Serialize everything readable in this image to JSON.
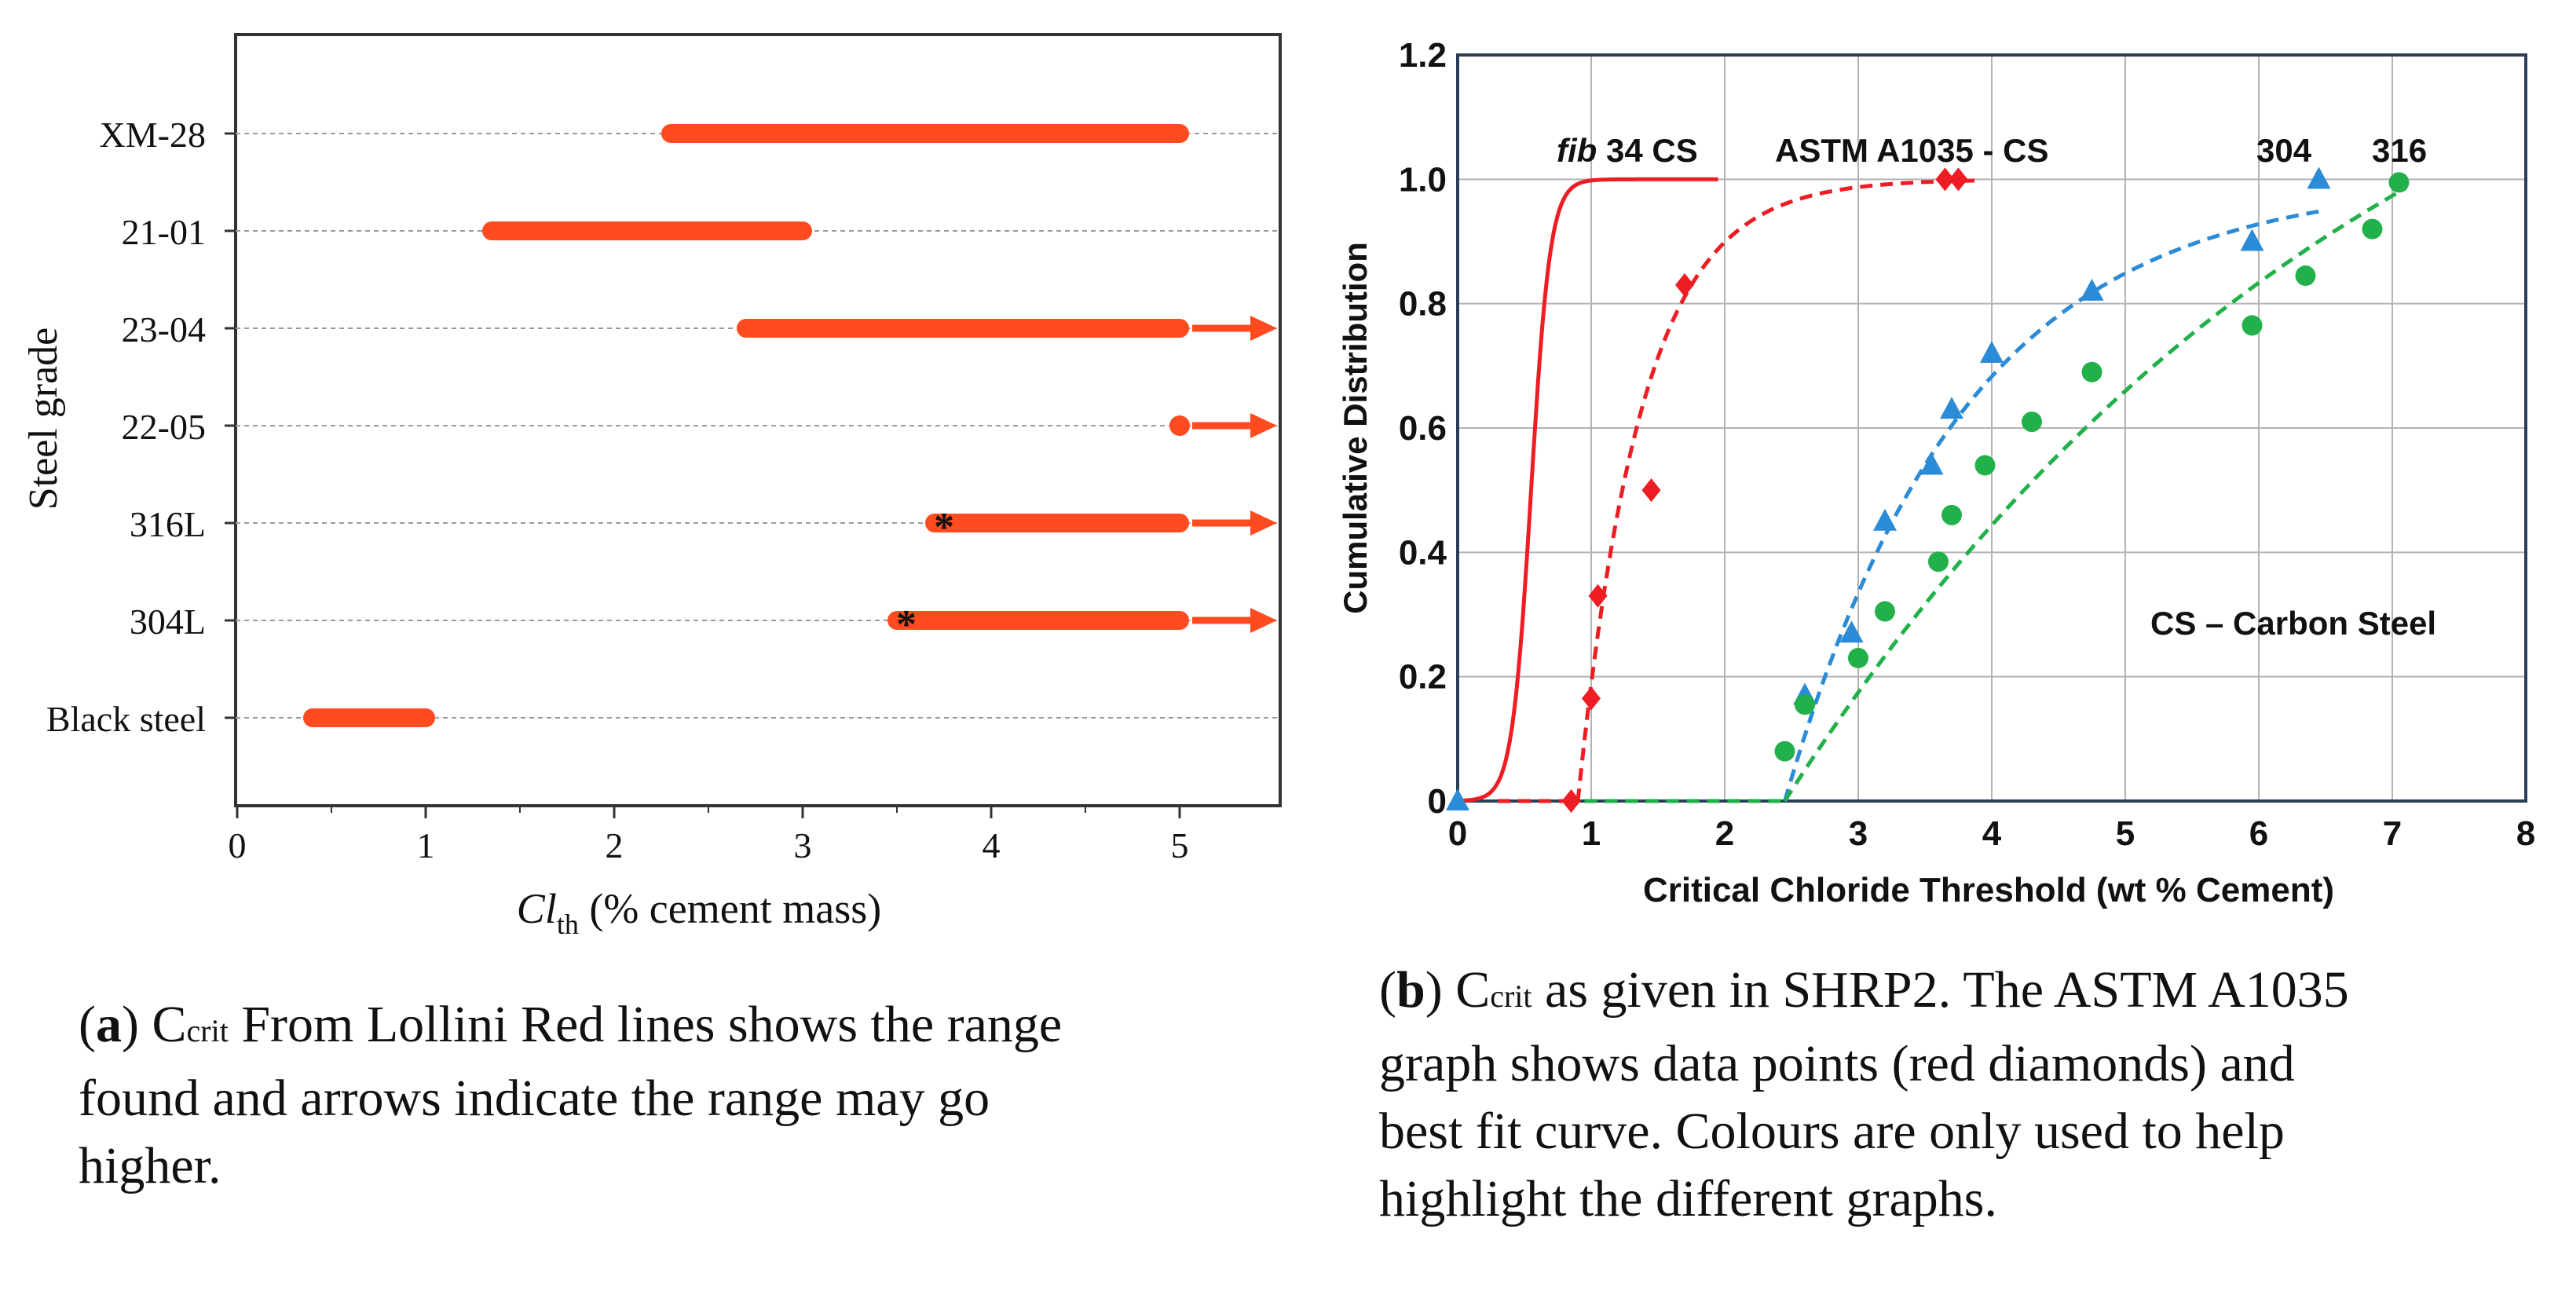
{
  "colors": {
    "bar": "#ff4b1f",
    "fib": "#ee1c23",
    "astm": "#ee1c23",
    "s304": "#2b8bd6",
    "s316": "#22b04a",
    "grid": "#b3b3b3",
    "frame": "#2a3f57",
    "text": "#111111"
  },
  "chart_data": [
    {
      "type": "bar",
      "panel": "a",
      "orientation": "horizontal-range",
      "ylabel": "Steel grade",
      "xlabel_symbol": "Cl",
      "xlabel_sub": "th",
      "xlabel_rest": " (% cement mass)",
      "xlim": [
        0,
        5.4
      ],
      "xticks": [
        "0",
        "1",
        "2",
        "3",
        "4",
        "5"
      ],
      "asterisk": "*",
      "categories": [
        "XM-28",
        "21-01",
        "23-04",
        "22-05",
        "316L",
        "304L",
        "Black steel"
      ],
      "ranges": [
        {
          "name": "XM-28",
          "start": 2.3,
          "end": 5.0,
          "arrow": false,
          "asterisk": false
        },
        {
          "name": "21-01",
          "start": 1.35,
          "end": 3.0,
          "arrow": false,
          "asterisk": false
        },
        {
          "name": "23-04",
          "start": 2.7,
          "end": 5.0,
          "arrow": true,
          "asterisk": false
        },
        {
          "name": "22-05",
          "start": 5.0,
          "end": 5.0,
          "arrow": true,
          "asterisk": false
        },
        {
          "name": "316L",
          "start": 3.7,
          "end": 5.0,
          "arrow": true,
          "asterisk": true
        },
        {
          "name": "304L",
          "start": 3.5,
          "end": 5.0,
          "arrow": true,
          "asterisk": true
        },
        {
          "name": "Black steel",
          "start": 0.4,
          "end": 1.0,
          "arrow": false,
          "asterisk": false
        }
      ]
    },
    {
      "type": "scatter",
      "panel": "b",
      "xlabel": "Critical Chloride Threshold (wt % Cement)",
      "ylabel": "Cumulative Distribution",
      "xlim": [
        0,
        8
      ],
      "ylim": [
        0,
        1.2
      ],
      "xticks": [
        "0",
        "1",
        "2",
        "3",
        "4",
        "5",
        "6",
        "7",
        "8"
      ],
      "yticks": [
        "0",
        "0.2",
        "0.4",
        "0.6",
        "0.8",
        "1.0",
        "1.2"
      ],
      "annotation": "CS – Carbon Steel",
      "series": [
        {
          "key": "fib",
          "label_italic": "fib",
          "label_rest": " 34 CS",
          "style": "solid-line",
          "marker": "none",
          "fit": {
            "type": "logistic",
            "x0": 0.55,
            "k": 14,
            "xmin": 0,
            "xmax": 1.95
          }
        },
        {
          "key": "astm",
          "label": "ASTM A1035 - CS",
          "style": "dashed-line",
          "marker": "diamond",
          "points": [
            [
              0.85,
              0
            ],
            [
              1.0,
              0.165
            ],
            [
              1.05,
              0.33
            ],
            [
              1.45,
              0.5
            ],
            [
              1.7,
              0.83
            ],
            [
              3.65,
              1.0
            ],
            [
              3.75,
              1.0
            ]
          ],
          "fit": {
            "type": "exp",
            "x0": 0.9,
            "tau": 0.48,
            "xmax": 3.9
          }
        },
        {
          "key": "s304",
          "label": "304",
          "style": "dashed-line",
          "marker": "triangle",
          "points": [
            [
              0,
              0
            ],
            [
              2.6,
              0.17
            ],
            [
              2.95,
              0.27
            ],
            [
              3.2,
              0.45
            ],
            [
              3.55,
              0.54
            ],
            [
              3.7,
              0.63
            ],
            [
              4.0,
              0.72
            ],
            [
              4.75,
              0.82
            ],
            [
              5.95,
              0.9
            ],
            [
              6.45,
              1.0
            ]
          ],
          "fit": {
            "type": "exp",
            "x0": 2.45,
            "tau": 1.35,
            "scale": 1.0,
            "xmin": 2.45,
            "xmax": 6.5
          }
        },
        {
          "key": "s316",
          "label": "316",
          "style": "dashed-line",
          "marker": "circle",
          "points": [
            [
              2.45,
              0.08
            ],
            [
              2.6,
              0.155
            ],
            [
              3.0,
              0.23
            ],
            [
              3.2,
              0.305
            ],
            [
              3.6,
              0.385
            ],
            [
              3.7,
              0.46
            ],
            [
              3.95,
              0.54
            ],
            [
              4.3,
              0.61
            ],
            [
              4.75,
              0.69
            ],
            [
              5.95,
              0.765
            ],
            [
              6.35,
              0.845
            ],
            [
              6.85,
              0.92
            ],
            [
              7.05,
              0.995
            ]
          ],
          "fit": {
            "type": "exp",
            "x0": 2.45,
            "tau": 4.6,
            "scale": 1.55,
            "xmin": 2.45,
            "xmax": 7.1
          }
        }
      ]
    }
  ],
  "captions": {
    "a": {
      "label": "a",
      "c_letter": "C",
      "c_sub": "crit",
      "line1_rest": " From Lollini Red lines shows the range",
      "line2": "found and arrows indicate the range may go",
      "line3": "higher."
    },
    "b": {
      "label": "b",
      "c_letter": "C",
      "c_sub": "crit",
      "line1_rest": " as given in SHRP2. The ASTM A1035",
      "line2": "graph shows data points (red diamonds) and",
      "line3": "best fit curve. Colours are only used to help",
      "line4": "highlight the different graphs."
    }
  }
}
